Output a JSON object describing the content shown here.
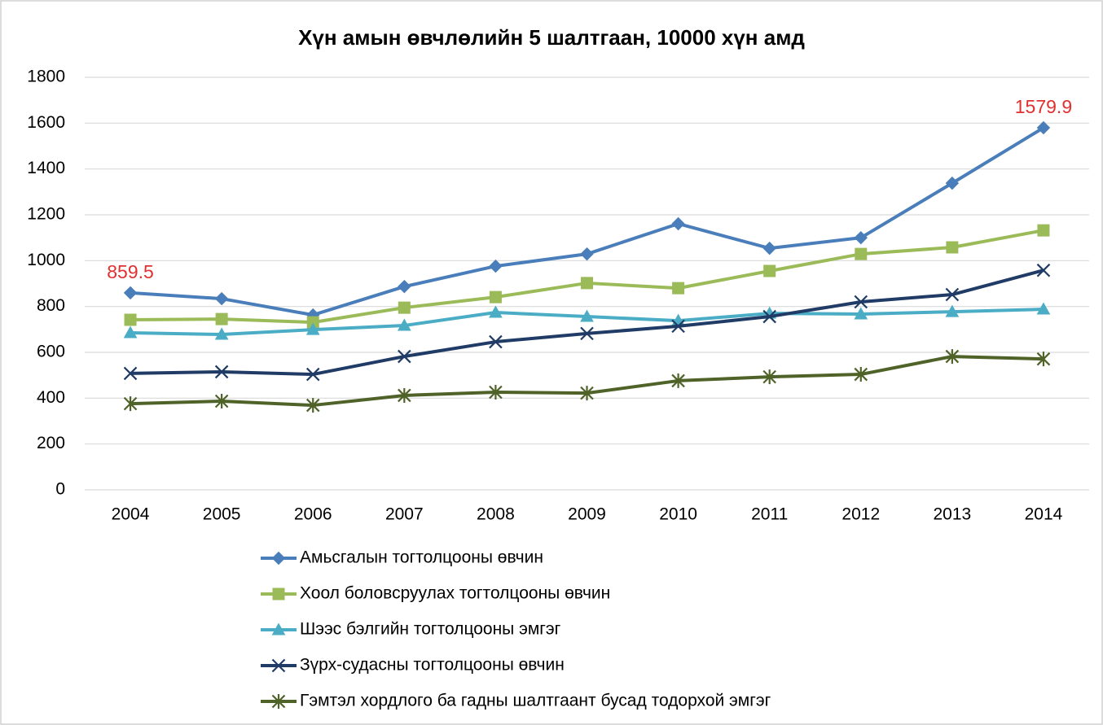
{
  "chart_data": {
    "type": "line",
    "title": "Хүн амын өвчлөлийн 5 шалтгаан, 10000 хүн амд",
    "categories": [
      "2004",
      "2005",
      "2006",
      "2007",
      "2008",
      "2009",
      "2010",
      "2011",
      "2012",
      "2013",
      "2014"
    ],
    "series": [
      {
        "name": "Амьсгалын тогтолцооны өвчин",
        "color": "#4a7ebb",
        "marker": "diamond",
        "values": [
          859.5,
          834,
          763,
          887,
          976,
          1029,
          1161,
          1054,
          1100,
          1338,
          1579.9
        ],
        "value_labels": [
          "859.5",
          null,
          null,
          null,
          null,
          null,
          null,
          null,
          null,
          null,
          "1579.9"
        ]
      },
      {
        "name": "Хоол боловсруулах тогтолцооны өвчин",
        "color": "#9bbb59",
        "marker": "square",
        "values": [
          742,
          745,
          731,
          795,
          841,
          902,
          880,
          955,
          1029,
          1058,
          1132
        ]
      },
      {
        "name": "Шээс бэлгийн тогтолцооны эмгэг",
        "color": "#4bacc6",
        "marker": "triangle",
        "values": [
          685,
          678,
          699,
          717,
          774,
          756,
          738,
          770,
          767,
          777,
          788
        ]
      },
      {
        "name": "Зүрх-судасны тогтолцооны өвчин",
        "color": "#1f3b66",
        "marker": "x",
        "values": [
          508,
          515,
          504,
          582,
          646,
          682,
          714,
          756,
          820,
          852,
          958
        ]
      },
      {
        "name": "Гэмтэл хордлого ба гадны шалтгаант бусад тодорхой эмгэг",
        "color": "#4f6228",
        "marker": "star",
        "values": [
          376,
          387,
          369,
          412,
          426,
          422,
          476,
          493,
          504,
          582,
          571
        ]
      }
    ],
    "value_label_color": "#e03030",
    "ylim": [
      0,
      1800
    ],
    "yticks": [
      0,
      200,
      400,
      600,
      800,
      1000,
      1200,
      1400,
      1600,
      1800
    ],
    "grid": true,
    "legend": "bottom"
  }
}
